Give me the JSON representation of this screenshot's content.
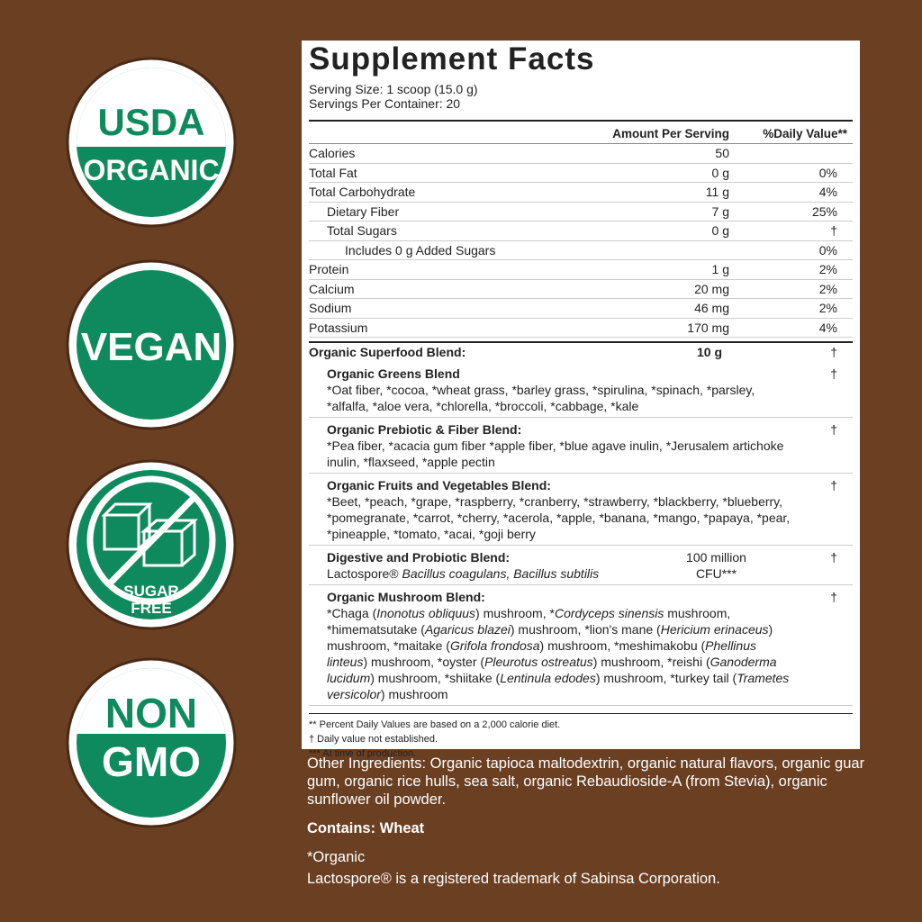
{
  "badges": [
    {
      "lines": [
        "USDA",
        "ORGANIC"
      ]
    },
    {
      "lines": [
        "VEGAN"
      ]
    },
    {
      "lines": [
        "SUGAR",
        "FREE"
      ]
    },
    {
      "lines": [
        "NON",
        "GMO"
      ]
    }
  ],
  "facts": {
    "title": "Supplement Facts",
    "serving_size": "Serving Size: 1 scoop (15.0 g)",
    "servings": "Servings Per Container: 20",
    "header": {
      "amount": "Amount Per Serving",
      "dv": "%Daily Value**"
    },
    "nutrients": [
      {
        "name": "Calories",
        "amount": "50",
        "level": 0
      },
      {
        "name": "Total Fat",
        "amount": "0 g",
        "dv": "0%",
        "level": 0
      },
      {
        "name": "Total Carbohydrate",
        "amount": "11 g",
        "dv": "4%",
        "level": 0
      },
      {
        "name": "Dietary Fiber",
        "amount": "7 g",
        "dv": "25%",
        "level": 1
      },
      {
        "name": "Total Sugars",
        "amount": "0 g",
        "dv": "†",
        "level": 1
      },
      {
        "name": "Includes 0 g Added Sugars",
        "dv": "0%",
        "level": 2
      },
      {
        "name": "Protein",
        "amount": "1 g",
        "dv": "2%",
        "level": 0
      },
      {
        "name": "Calcium",
        "amount": "20 mg",
        "dv": "2%",
        "level": 0
      },
      {
        "name": "Sodium",
        "amount": "46 mg",
        "dv": "2%",
        "level": 0
      },
      {
        "name": "Potassium",
        "amount": "170 mg",
        "dv": "4%",
        "level": 0
      }
    ],
    "blend": {
      "name": "Organic Superfood Blend:",
      "amount": "10 g",
      "dv": "†"
    },
    "sub_blends": [
      {
        "name": "Organic Greens Blend",
        "dv": "†",
        "desc": [
          "*Oat fiber, *cocoa, *wheat grass, *barley grass, *spirulina, *spinach, *parsley, *alfalfa, *aloe vera, *chlorella, *broccoli, *cabbage, *kale"
        ]
      },
      {
        "name": "Organic Prebiotic & Fiber Blend:",
        "dv": "†",
        "desc": [
          " *Pea fiber, *acacia gum fiber *apple fiber, *blue agave inulin, *Jerusalem artichoke inulin, *flaxseed, *apple pectin"
        ]
      },
      {
        "name": "Organic Fruits and Vegetables Blend:",
        "dv": "†",
        "desc": [
          "*Beet, *peach, *grape, *raspberry, *cranberry, *strawberry, *blackberry, *blueberry, *pomegranate, *carrot, *cherry, *acerola, *apple, *banana, *mango, *papaya, *pear, *pineapple, *tomato, *acai, *goji berry"
        ]
      },
      {
        "name": "Digestive and Probiotic Blend:",
        "amount": "100 million CFU***",
        "dv": "†",
        "desc": [
          "Lactospore® ",
          {
            "italic": "Bacillus coagulans, Bacillus subtilis"
          }
        ]
      },
      {
        "name": "Organic Mushroom Blend:",
        "dv": "†",
        "desc": [
          "*Chaga (",
          {
            "italic": "Inonotus obliquus"
          },
          ") mushroom, *",
          {
            "italic": "Cordyceps sinensis"
          },
          " mushroom, *himematsutake (",
          {
            "italic": "Agaricus blazei"
          },
          ") mushroom, *lion's mane (",
          {
            "italic": "Hericium erinaceus"
          },
          ") mushroom, *maitake (",
          {
            "italic": "Grifola frondosa"
          },
          ") mushroom, *meshimakobu (",
          {
            "italic": "Phellinus linteus"
          },
          ") mushroom, *oyster (",
          {
            "italic": "Pleurotus ostreatus"
          },
          ") mushroom, *reishi (",
          {
            "italic": "Ganoderma lucidum"
          },
          ") mushroom, *shiitake (",
          {
            "italic": "Lentinula edodes"
          },
          ") mushroom, *turkey tail (",
          {
            "italic": "Trametes versicolor"
          },
          ") mushroom"
        ]
      }
    ],
    "footnotes": [
      "** Percent Daily Values are based on a 2,000 calorie diet.",
      "† Daily value not established.",
      "*** At time of production."
    ]
  },
  "other_ingredients": "Other Ingredients: Organic tapioca maltodextrin, organic natural flavors, organic guar gum, organic rice hulls, sea salt, organic Rebaudioside-A (from Stevia), organic sunflower oil powder.",
  "contains": "Contains: Wheat",
  "organic_note": "*Organic",
  "trademark": "Lactospore® is a registered trademark of Sabinsa Corporation."
}
